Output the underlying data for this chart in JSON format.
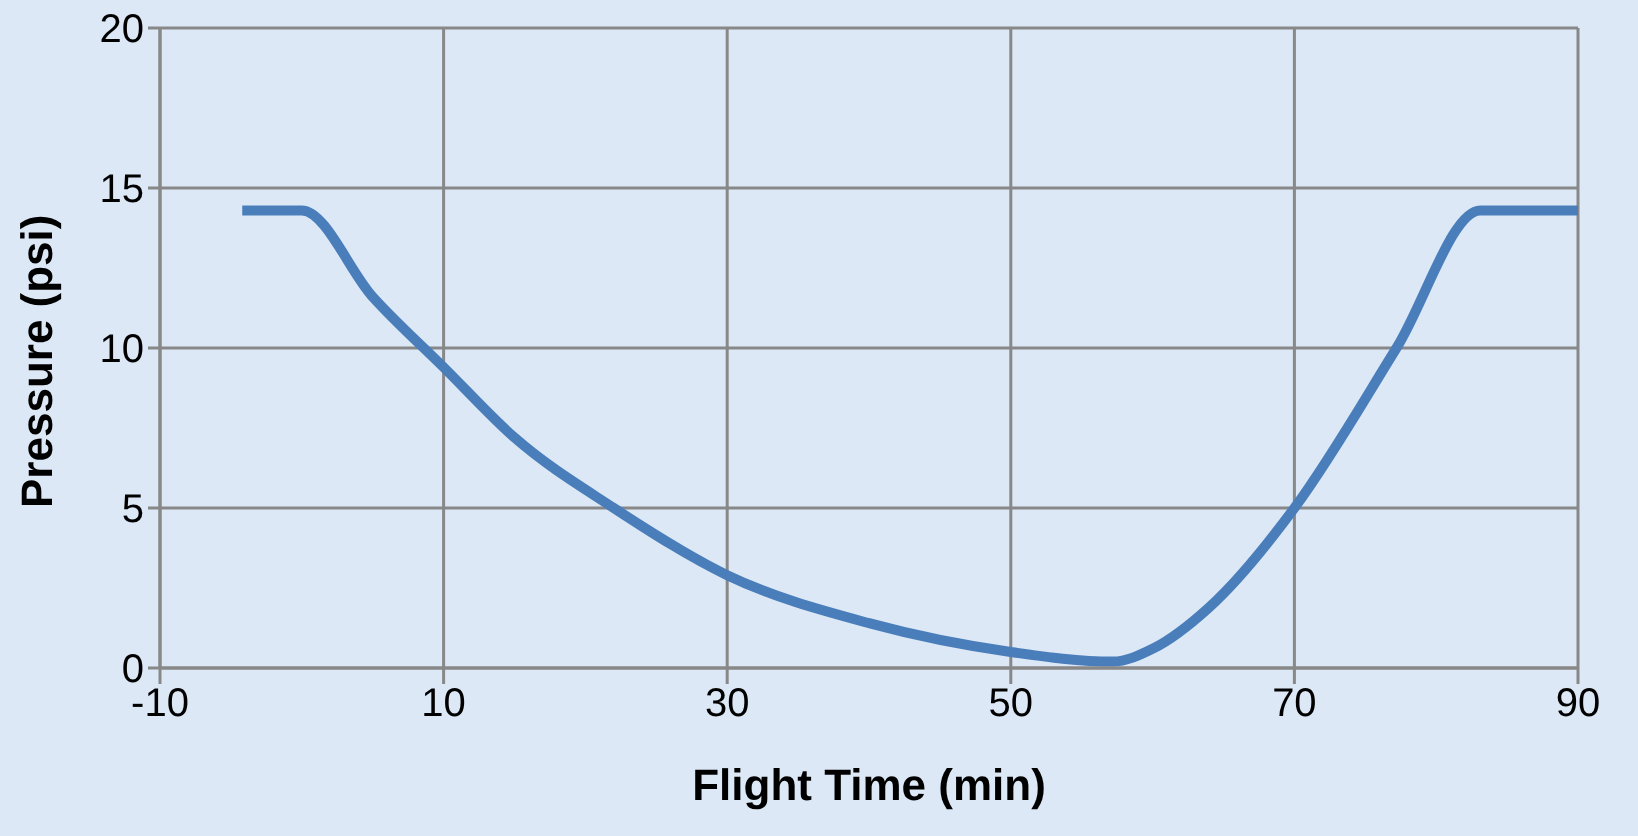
{
  "chart_data": {
    "type": "line",
    "xlabel": "Flight Time (min)",
    "ylabel": "Pressure (psi)",
    "x": [
      -4.2,
      0,
      5,
      10,
      15,
      22,
      30,
      40,
      50,
      57.2,
      60,
      64,
      70,
      77.2,
      83.1,
      90
    ],
    "series": [
      {
        "color": "#4a7ebb",
        "values": [
          14.3,
          14.3,
          11.6,
          9.4,
          7.2,
          5,
          2.9,
          1.4,
          0.5,
          0.2,
          0.6,
          1.9,
          5,
          10,
          14.3,
          14.3
        ]
      }
    ],
    "xlim": [
      -10,
      90
    ],
    "xticks": [
      -10,
      10,
      30,
      50,
      70,
      90
    ],
    "ylim": [
      0,
      20
    ],
    "yticks": [
      0,
      5,
      10,
      15,
      20
    ],
    "grid": true,
    "marker": "none",
    "line_style": "solid"
  }
}
